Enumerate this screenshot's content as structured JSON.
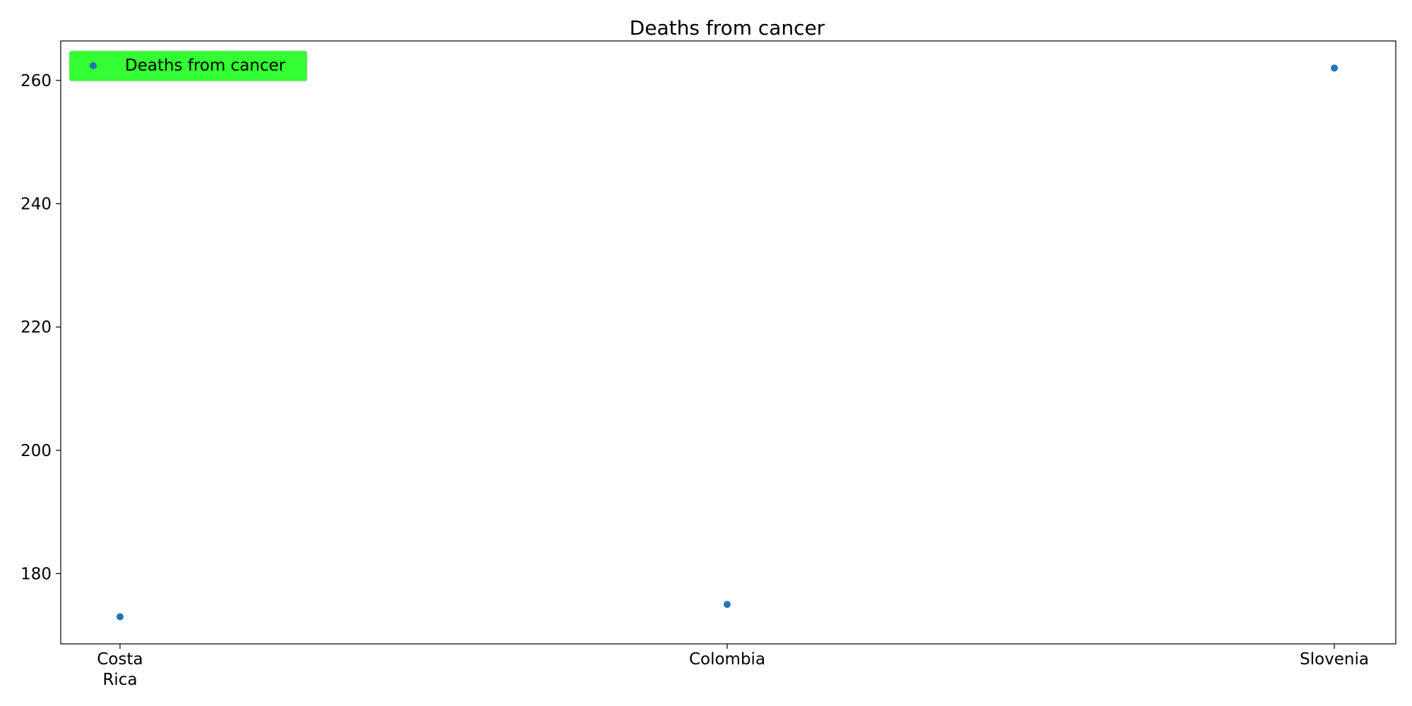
{
  "chart_data": {
    "type": "scatter",
    "title": "Deaths from cancer",
    "xlabel": "",
    "ylabel": "",
    "categories": [
      [
        "Costa",
        "Rica"
      ],
      [
        "Colombia"
      ],
      [
        "Slovenia"
      ]
    ],
    "series": [
      {
        "name": "Deaths from cancer",
        "values": [
          173,
          175,
          262
        ]
      }
    ],
    "ylim": [
      168.6,
      266.4
    ],
    "yticks": [
      180,
      200,
      220,
      240,
      260
    ],
    "grid": false,
    "legend": {
      "placement": "top-left",
      "background": "#33ff33"
    },
    "colors": {
      "series": "#1f77b4",
      "axes": "#000000"
    }
  }
}
